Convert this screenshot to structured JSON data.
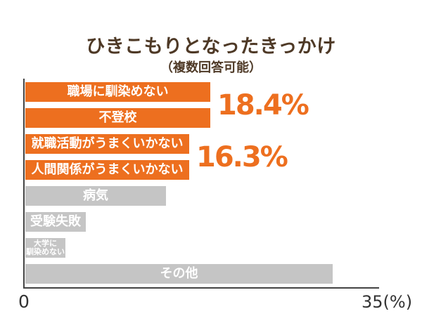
{
  "title": "ひきこもりとなったきっかけ",
  "subtitle": "（複数回答可能）",
  "colors": {
    "accent": "#ED6F1F",
    "muted": "#C5C5C5",
    "title_text": "#4E3926",
    "bar_text": "#FFFFFF",
    "axis": "#444444",
    "tick_text": "#333333"
  },
  "chart_data": {
    "type": "bar",
    "orientation": "horizontal",
    "title": "ひきこもりとなったきっかけ",
    "subtitle": "（複数回答可能）",
    "xlim": [
      0,
      35
    ],
    "x_ticks": [
      "0",
      "35(%)"
    ],
    "grid": false,
    "legend": false,
    "categories": [
      "職場に馴染めない",
      "不登校",
      "就職活動がうまくいかない",
      "人間関係がうまくいかない",
      "病気",
      "受験失敗",
      "大学に馴染めない",
      "その他"
    ],
    "values": [
      18.4,
      18.4,
      16.3,
      16.3,
      14.0,
      6.0,
      4.0,
      30.5
    ],
    "bars": [
      {
        "label": "職場に馴染めない",
        "value": 18.4,
        "highlight": true
      },
      {
        "label": "不登校",
        "value": 18.4,
        "highlight": true
      },
      {
        "label": "就職活動がうまくいかない",
        "value": 16.3,
        "highlight": true
      },
      {
        "label": "人間関係がうまくいかない",
        "value": 16.3,
        "highlight": true
      },
      {
        "label": "病気",
        "value": 14.0,
        "highlight": false
      },
      {
        "label": "受験失敗",
        "value": 6.0,
        "highlight": false
      },
      {
        "label": "大学に\n馴染めない",
        "value": 4.0,
        "highlight": false,
        "small_text": true
      },
      {
        "label": "その他",
        "value": 30.5,
        "highlight": false
      }
    ],
    "value_labels": [
      {
        "text": "18.4%",
        "rows": [
          0,
          1
        ]
      },
      {
        "text": "16.3%",
        "rows": [
          2,
          3
        ]
      }
    ]
  }
}
